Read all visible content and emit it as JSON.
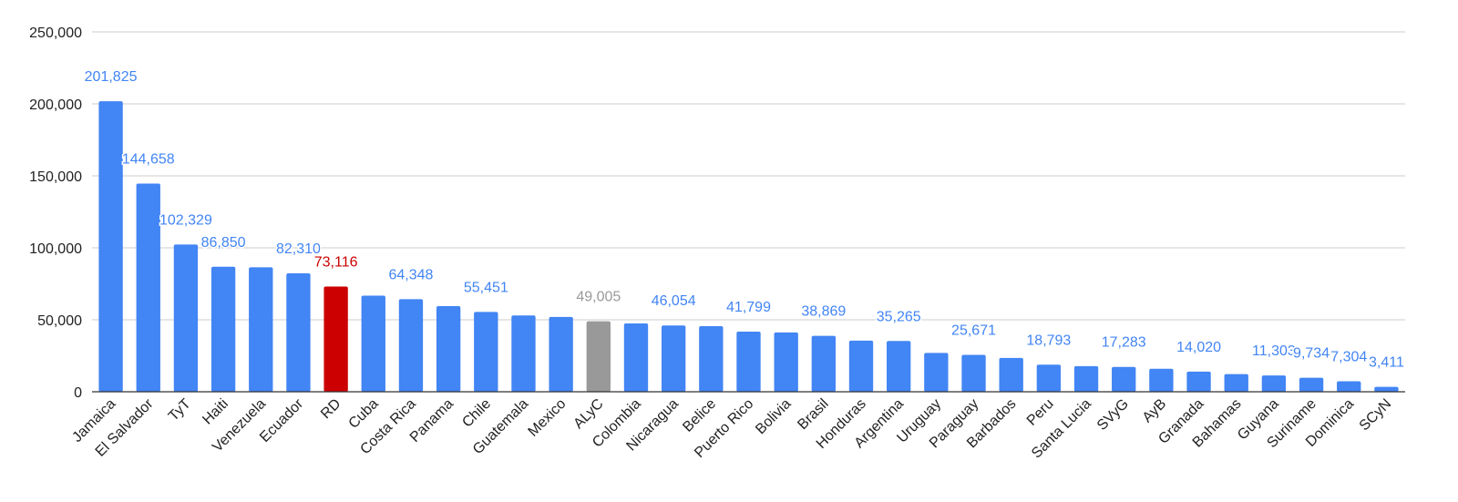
{
  "chart_data": {
    "type": "bar",
    "title": "",
    "xlabel": "",
    "ylabel": "",
    "ylim": [
      0,
      250000
    ],
    "yticks": [
      0,
      50000,
      100000,
      150000,
      200000,
      250000
    ],
    "ytick_labels": [
      "0",
      "50,000",
      "100,000",
      "150,000",
      "200,000",
      "250,000"
    ],
    "grid": true,
    "legend": "none",
    "categories": [
      "Jamaica",
      "El Salvador",
      "TyT",
      "Haiti",
      "Venezuela",
      "Ecuador",
      "RD",
      "Cuba",
      "Costa Rica",
      "Panama",
      "Chile",
      "Guatemala",
      "Mexico",
      "ALyC",
      "Colombia",
      "Nicaragua",
      "Belice",
      "Puerto Rico",
      "Bolivia",
      "Brasil",
      "Honduras",
      "Argentina",
      "Uruguay",
      "Paraguay",
      "Barbados",
      "Peru",
      "Santa Lucia",
      "SVyG",
      "AyB",
      "Granada",
      "Bahamas",
      "Guyana",
      "Suriname",
      "Dominica",
      "SCyN"
    ],
    "values": [
      201825,
      144658,
      102329,
      86850,
      86500,
      82310,
      73116,
      66800,
      64348,
      59500,
      55451,
      53000,
      52000,
      49005,
      47500,
      46054,
      45600,
      41799,
      41200,
      38869,
      35500,
      35265,
      27000,
      25671,
      23500,
      18793,
      17800,
      17283,
      16000,
      14020,
      12300,
      11303,
      9734,
      7304,
      3411
    ],
    "bar_colors": [
      "#4285f4",
      "#4285f4",
      "#4285f4",
      "#4285f4",
      "#4285f4",
      "#4285f4",
      "#cc0000",
      "#4285f4",
      "#4285f4",
      "#4285f4",
      "#4285f4",
      "#4285f4",
      "#4285f4",
      "#999999",
      "#4285f4",
      "#4285f4",
      "#4285f4",
      "#4285f4",
      "#4285f4",
      "#4285f4",
      "#4285f4",
      "#4285f4",
      "#4285f4",
      "#4285f4",
      "#4285f4",
      "#4285f4",
      "#4285f4",
      "#4285f4",
      "#4285f4",
      "#4285f4",
      "#4285f4",
      "#4285f4",
      "#4285f4",
      "#4285f4",
      "#4285f4"
    ],
    "data_labels": [
      {
        "category": "Jamaica",
        "text": "201,825",
        "color": "#4285f4"
      },
      {
        "category": "El Salvador",
        "text": "144,658",
        "color": "#4285f4"
      },
      {
        "category": "TyT",
        "text": "102,329",
        "color": "#4285f4"
      },
      {
        "category": "Haiti",
        "text": "86,850",
        "color": "#4285f4"
      },
      {
        "category": "Ecuador",
        "text": "82,310",
        "color": "#4285f4"
      },
      {
        "category": "RD",
        "text": "73,116",
        "color": "#cc0000"
      },
      {
        "category": "Costa Rica",
        "text": "64,348",
        "color": "#4285f4"
      },
      {
        "category": "Chile",
        "text": "55,451",
        "color": "#4285f4"
      },
      {
        "category": "ALyC",
        "text": "49,005",
        "color": "#999999"
      },
      {
        "category": "Nicaragua",
        "text": "46,054",
        "color": "#4285f4"
      },
      {
        "category": "Puerto Rico",
        "text": "41,799",
        "color": "#4285f4"
      },
      {
        "category": "Brasil",
        "text": "38,869",
        "color": "#4285f4"
      },
      {
        "category": "Argentina",
        "text": "35,265",
        "color": "#4285f4"
      },
      {
        "category": "Paraguay",
        "text": "25,671",
        "color": "#4285f4"
      },
      {
        "category": "Peru",
        "text": "18,793",
        "color": "#4285f4"
      },
      {
        "category": "SVyG",
        "text": "17,283",
        "color": "#4285f4"
      },
      {
        "category": "Granada",
        "text": "14,020",
        "color": "#4285f4"
      },
      {
        "category": "Guyana",
        "text": "11,303",
        "color": "#4285f4"
      },
      {
        "category": "Suriname",
        "text": "9,734",
        "color": "#4285f4"
      },
      {
        "category": "Dominica",
        "text": "7,304",
        "color": "#4285f4"
      },
      {
        "category": "SCyN",
        "text": "3,411",
        "color": "#4285f4"
      }
    ]
  }
}
